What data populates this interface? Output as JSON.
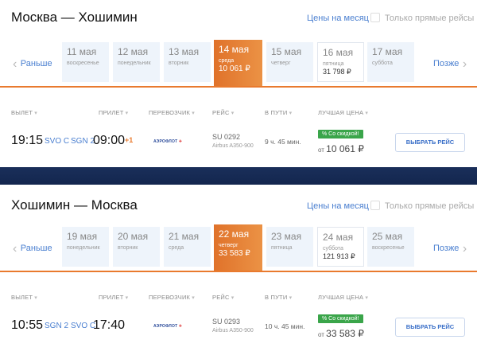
{
  "month_prices_label": "Цены на месяц",
  "direct_only_label": "Только прямые рейсы",
  "earlier_label": "Раньше",
  "later_label": "Позже",
  "headers": {
    "depart": "ВЫЛЕТ",
    "arrive": "ПРИЛЕТ",
    "carrier": "ПЕРЕВОЗЧИК",
    "flight": "РЕЙС",
    "duration": "В ПУТИ",
    "best_price": "ЛУЧШАЯ ЦЕНА"
  },
  "colors": {
    "accent": "#e97a2e",
    "link": "#4a7fd0",
    "discount": "#3aa54a",
    "band": "#16294f"
  },
  "sections": [
    {
      "title": "Москва — Хошимин",
      "days": [
        {
          "date": "11 мая",
          "weekday": "воскресенье",
          "price": ""
        },
        {
          "date": "12 мая",
          "weekday": "понедельник",
          "price": ""
        },
        {
          "date": "13 мая",
          "weekday": "вторник",
          "price": ""
        },
        {
          "date": "14 мая",
          "weekday": "среда",
          "price": "10 061 ₽",
          "selected": true
        },
        {
          "date": "15 мая",
          "weekday": "четверг",
          "price": ""
        },
        {
          "date": "16 мая",
          "weekday": "пятница",
          "price": "31 798 ₽",
          "bordered": true
        },
        {
          "date": "17 мая",
          "weekday": "суббота",
          "price": ""
        }
      ],
      "flight": {
        "depart_time": "19:15",
        "from": "SVO C",
        "to": "SGN 2",
        "arrive_time": "09:00",
        "day_offset": "+1",
        "carrier_logo": "АЭРОФЛОТ",
        "number": "SU 0292",
        "aircraft": "Airbus A350-900",
        "duration": "9 ч. 45 мин.",
        "badge": "% Со скидкой!",
        "price_prefix": "от",
        "price": "10 061 ₽",
        "button": "ВЫБРАТЬ РЕЙС"
      }
    },
    {
      "title": "Хошимин — Москва",
      "days": [
        {
          "date": "19 мая",
          "weekday": "понедельник",
          "price": ""
        },
        {
          "date": "20 мая",
          "weekday": "вторник",
          "price": ""
        },
        {
          "date": "21 мая",
          "weekday": "среда",
          "price": ""
        },
        {
          "date": "22 мая",
          "weekday": "четверг",
          "price": "33 583 ₽",
          "selected": true
        },
        {
          "date": "23 мая",
          "weekday": "пятница",
          "price": ""
        },
        {
          "date": "24 мая",
          "weekday": "суббота",
          "price": "121 913 ₽",
          "bordered": true
        },
        {
          "date": "25 мая",
          "weekday": "воскресенье",
          "price": ""
        }
      ],
      "flight": {
        "depart_time": "10:55",
        "from": "SGN 2",
        "to": "SVO C",
        "arrive_time": "17:40",
        "day_offset": "",
        "carrier_logo": "АЭРОФЛОТ",
        "number": "SU 0293",
        "aircraft": "Airbus A350-900",
        "duration": "10 ч. 45 мин.",
        "badge": "% Со скидкой!",
        "price_prefix": "от",
        "price": "33 583 ₽",
        "button": "ВЫБРАТЬ РЕЙС"
      }
    }
  ]
}
